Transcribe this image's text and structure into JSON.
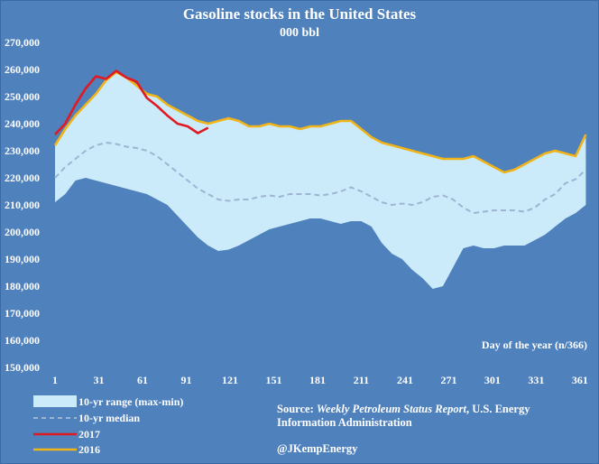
{
  "chart_data": {
    "type": "line",
    "title": "Gasoline stocks in the United States",
    "subtitle": "000 bbl",
    "xlabel": "Day of the year (n/366)",
    "ylabel": "",
    "xlim": [
      1,
      366
    ],
    "ylim": [
      150000,
      270000
    ],
    "x_ticks": [
      1,
      31,
      61,
      91,
      121,
      151,
      181,
      211,
      241,
      271,
      301,
      331,
      361
    ],
    "y_ticks": [
      150000,
      160000,
      170000,
      180000,
      190000,
      200000,
      210000,
      220000,
      230000,
      240000,
      250000,
      260000,
      270000
    ],
    "y_tick_labels": [
      "150,000",
      "160,000",
      "170,000",
      "180,000",
      "190,000",
      "200,000",
      "210,000",
      "220,000",
      "230,000",
      "240,000",
      "250,000",
      "260,000",
      "270,000"
    ],
    "x_tick_labels": [
      "1",
      "31",
      "61",
      "91",
      "121",
      "151",
      "181",
      "211",
      "241",
      "271",
      "301",
      "331",
      "361"
    ],
    "grid": false,
    "legend_position": "bottom-left",
    "colors": {
      "background": "#4f81bd",
      "range_fill": "#ccebfa",
      "median": "#9db4d3",
      "series_2017": "#e01a22",
      "series_2016": "#f0b419"
    },
    "series": [
      {
        "name": "10-yr range (max-min)",
        "kind": "band",
        "x": [
          1,
          8,
          15,
          22,
          29,
          36,
          43,
          50,
          57,
          64,
          71,
          78,
          85,
          92,
          99,
          106,
          113,
          120,
          127,
          134,
          141,
          148,
          155,
          162,
          169,
          176,
          183,
          190,
          197,
          204,
          211,
          218,
          225,
          232,
          239,
          246,
          253,
          260,
          267,
          274,
          281,
          288,
          295,
          302,
          309,
          316,
          323,
          330,
          337,
          344,
          351,
          358,
          365
        ],
        "max": [
          232000,
          238000,
          243000,
          247000,
          251000,
          256000,
          259000,
          257000,
          254000,
          251000,
          250000,
          247000,
          245000,
          243000,
          241000,
          240000,
          241000,
          242000,
          241000,
          239000,
          239000,
          240000,
          239000,
          239000,
          238000,
          239000,
          239000,
          240000,
          241000,
          241000,
          238000,
          235000,
          233000,
          232000,
          231000,
          230000,
          229000,
          228000,
          227000,
          227000,
          227000,
          228000,
          226000,
          224000,
          222000,
          223000,
          225000,
          227000,
          229000,
          230000,
          229000,
          228000,
          236000
        ],
        "min": [
          211000,
          214000,
          219000,
          220000,
          219000,
          218000,
          217000,
          216000,
          215000,
          214000,
          212000,
          210000,
          206000,
          202000,
          198000,
          195000,
          193000,
          193500,
          195000,
          197000,
          199000,
          201000,
          202000,
          203000,
          204000,
          205000,
          205000,
          204000,
          203000,
          204000,
          204000,
          202000,
          196000,
          192000,
          190000,
          186000,
          183000,
          179000,
          180000,
          187000,
          194000,
          195000,
          194000,
          194000,
          195000,
          195000,
          195000,
          197000,
          199000,
          202000,
          205000,
          207000,
          210000
        ]
      },
      {
        "name": "10-yr median",
        "kind": "dashed",
        "x": [
          1,
          8,
          15,
          22,
          29,
          36,
          43,
          50,
          57,
          64,
          71,
          78,
          85,
          92,
          99,
          106,
          113,
          120,
          127,
          134,
          141,
          148,
          155,
          162,
          169,
          176,
          183,
          190,
          197,
          204,
          211,
          218,
          225,
          232,
          239,
          246,
          253,
          260,
          267,
          274,
          281,
          288,
          295,
          302,
          309,
          316,
          323,
          330,
          337,
          344,
          351,
          358,
          365
        ],
        "values": [
          220000,
          224000,
          227000,
          230000,
          232000,
          233000,
          232500,
          231500,
          231000,
          230000,
          228000,
          225000,
          222000,
          219000,
          216000,
          214000,
          212000,
          211500,
          212000,
          212000,
          213000,
          213500,
          213000,
          214000,
          214000,
          214000,
          213500,
          214000,
          215000,
          216500,
          215000,
          213000,
          211000,
          210000,
          210500,
          210000,
          211000,
          213000,
          213500,
          212000,
          209000,
          207000,
          207500,
          208000,
          208000,
          208000,
          207500,
          209000,
          212000,
          214000,
          218000,
          219500,
          223000
        ]
      },
      {
        "name": "2017",
        "kind": "line",
        "x": [
          1,
          8,
          15,
          22,
          29,
          36,
          43,
          50,
          57,
          64,
          71,
          78,
          85,
          92,
          99,
          106
        ],
        "values": [
          236000,
          240000,
          247000,
          253000,
          257500,
          256500,
          259500,
          257000,
          255500,
          249500,
          246500,
          243000,
          240000,
          239000,
          236500,
          238500
        ]
      },
      {
        "name": "2016",
        "kind": "line",
        "x": [
          1,
          8,
          15,
          22,
          29,
          36,
          43,
          50,
          57,
          64,
          71,
          78,
          85,
          92,
          99,
          106,
          113,
          120,
          127,
          134,
          141,
          148,
          155,
          162,
          169,
          176,
          183,
          190,
          197,
          204,
          211,
          218,
          225,
          232,
          239,
          246,
          253,
          260,
          267,
          274,
          281,
          288,
          295,
          302,
          309,
          316,
          323,
          330,
          337,
          344,
          351,
          358,
          365
        ],
        "values": [
          232000,
          238000,
          243000,
          247000,
          251000,
          256000,
          259000,
          257000,
          254000,
          251000,
          250000,
          247000,
          245000,
          243000,
          241000,
          240000,
          241000,
          242000,
          241000,
          239000,
          239000,
          240000,
          239000,
          239000,
          238000,
          239000,
          239000,
          240000,
          241000,
          241000,
          238000,
          235000,
          233000,
          232000,
          231000,
          230000,
          229000,
          228000,
          227000,
          227000,
          227000,
          228000,
          226000,
          224000,
          222000,
          223000,
          225000,
          227000,
          229000,
          230000,
          229000,
          228000,
          236000
        ]
      }
    ]
  },
  "legend": {
    "range_label": "10-yr range (max-min)",
    "median_label": "10-yr median",
    "y2017_label": "2017",
    "y2016_label": "2016"
  },
  "source": {
    "prefix": "Source: ",
    "title": "Weekly Petroleum Status Report",
    "line1_rest": ", U.S. Energy",
    "line2": "Information Administration"
  },
  "handle": "@JKempEnergy"
}
